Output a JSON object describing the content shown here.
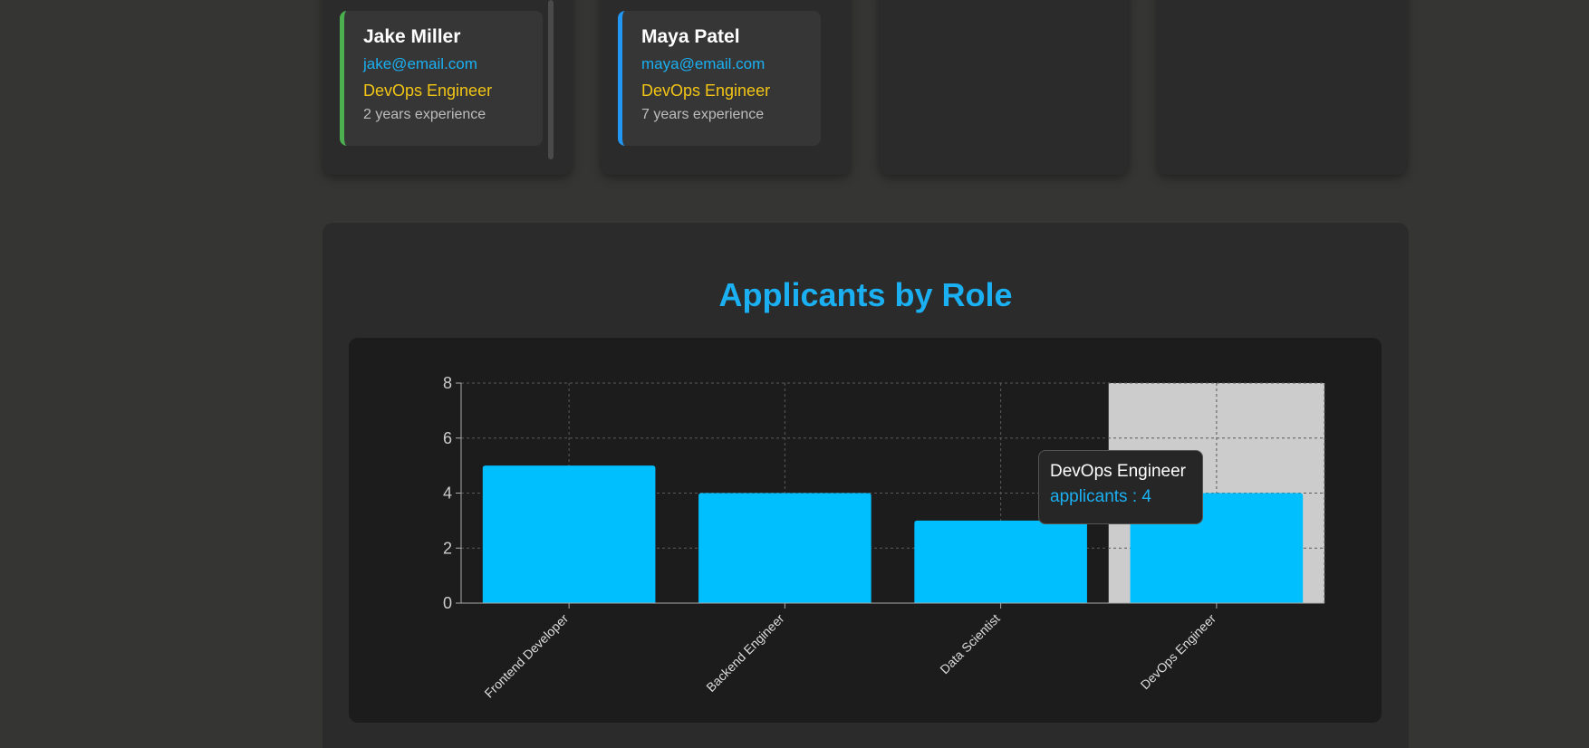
{
  "applicants": [
    {
      "name": "Jake Miller",
      "email": "jake@email.com",
      "role": "DevOps Engineer",
      "experience": "2 years experience",
      "accent": "#4caf50"
    },
    {
      "name": "Maya Patel",
      "email": "maya@email.com",
      "role": "DevOps Engineer",
      "experience": "7 years experience",
      "accent": "#2196f3"
    }
  ],
  "colors": {
    "background": "#353533",
    "panel": "#2b2b2b",
    "accent": "#1ab0f2",
    "bar": "#00bfff",
    "role": "#f3c515",
    "hover": "#cccccc"
  },
  "tooltip": {
    "title": "DevOps Engineer",
    "value_text": "applicants : 4"
  },
  "chart_data": {
    "type": "bar",
    "title": "Applicants by Role",
    "categories": [
      "Frontend Developer",
      "Backend Engineer",
      "Data Scientist",
      "DevOps Engineer"
    ],
    "series": [
      {
        "name": "applicants",
        "values": [
          5,
          4,
          3,
          4
        ]
      }
    ],
    "ylim": [
      0,
      8
    ],
    "yticks": [
      0,
      2,
      4,
      6,
      8
    ],
    "grid": true,
    "highlighted_category": "DevOps Engineer"
  }
}
